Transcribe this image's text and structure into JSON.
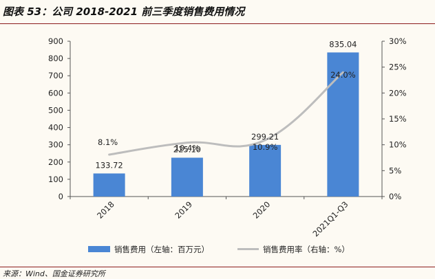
{
  "header": {
    "title": "图表 53：公司 2018-2021 前三季度销售费用情况"
  },
  "footer": {
    "source": "来源：Wind、国金证券研究所"
  },
  "chart_data": {
    "type": "bar",
    "title": "图表 53：公司 2018-2021 前三季度销售费用情况",
    "categories": [
      "2018",
      "2019",
      "2020",
      "2021Q1-Q3"
    ],
    "series": [
      {
        "name": "销售费用（左轴：百万元）",
        "type": "bar",
        "axis": "left",
        "values": [
          133.72,
          225.1,
          299.21,
          835.04
        ],
        "labels": [
          "133.72",
          "225.10",
          "299.21",
          "835.04"
        ],
        "color": "#4a86d4"
      },
      {
        "name": "销售费用率（右轴：%）",
        "type": "line",
        "axis": "right",
        "values": [
          8.1,
          10.4,
          10.9,
          24.0
        ],
        "labels": [
          "8.1%",
          "10.4%",
          "10.9%",
          "24.0%"
        ],
        "color": "#bdbdbd"
      }
    ],
    "y_left": {
      "min": 0,
      "max": 900,
      "step": 100,
      "ticks": [
        "0",
        "100",
        "200",
        "300",
        "400",
        "500",
        "600",
        "700",
        "800",
        "900"
      ]
    },
    "y_right": {
      "min": 0,
      "max": 30,
      "step": 5,
      "ticks": [
        "0%",
        "5%",
        "10%",
        "15%",
        "20%",
        "25%",
        "30%"
      ]
    },
    "grid": false,
    "legend": "bottom"
  }
}
